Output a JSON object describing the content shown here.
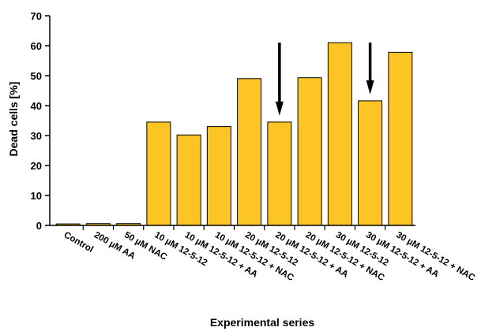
{
  "chart_data": {
    "type": "bar",
    "title": "",
    "xlabel": "Experimental series",
    "ylabel": "Dead cells [%]",
    "ylim": [
      0,
      70
    ],
    "yticks": [
      0,
      10,
      20,
      30,
      40,
      50,
      60,
      70
    ],
    "grid": false,
    "legend": "none",
    "categories": [
      "Control",
      "200 µM AA",
      "50 µM NAC",
      "10 µM 12-5-12",
      "10 µM 12-5-12 + AA",
      "10 µM 12-5-12 + NAC",
      "20 µM 12-5-12",
      "20 µM 12-5-12 + AA",
      "20 µM 12-5-12 + NAC",
      "30 µM 12-5-12",
      "30 µM 12-5-12 + AA",
      "30 µM 12-5-12 + NAC"
    ],
    "values": [
      0.5,
      0.6,
      0.6,
      34.5,
      30.2,
      33.0,
      49.0,
      34.5,
      49.3,
      61.0,
      41.6,
      57.8
    ],
    "arrows_at": [
      "20 µM 12-5-12 + AA",
      "30 µM 12-5-12 + AA"
    ],
    "colors": {
      "bar_fill": "#FCC525",
      "bar_stroke": "#000000",
      "axis": "#000000",
      "arrow": "#000000"
    }
  }
}
